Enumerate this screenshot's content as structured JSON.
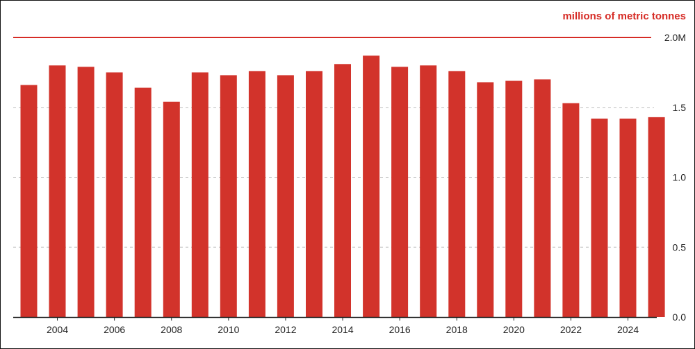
{
  "chart_data": {
    "type": "bar",
    "unit_label": "millions of metric tonnes",
    "categories": [
      "2003",
      "2004",
      "2005",
      "2006",
      "2007",
      "2008",
      "2009",
      "2010",
      "2011",
      "2012",
      "2013",
      "2014",
      "2015",
      "2016",
      "2017",
      "2018",
      "2019",
      "2020",
      "2021",
      "2022",
      "2023",
      "2024",
      "2025"
    ],
    "values": [
      1.66,
      1.8,
      1.79,
      1.75,
      1.64,
      1.54,
      1.75,
      1.73,
      1.76,
      1.73,
      1.76,
      1.81,
      1.87,
      1.79,
      1.8,
      1.76,
      1.68,
      1.69,
      1.7,
      1.53,
      1.42,
      1.42,
      1.43
    ],
    "x_tick_labels": [
      "2004",
      "2006",
      "2008",
      "2010",
      "2012",
      "2014",
      "2016",
      "2018",
      "2020",
      "2022",
      "2024"
    ],
    "y_ticks": [
      {
        "value": 0.0,
        "label": "0.0"
      },
      {
        "value": 0.5,
        "label": "0.5"
      },
      {
        "value": 1.0,
        "label": "1.0"
      },
      {
        "value": 1.5,
        "label": "1.5"
      },
      {
        "value": 2.0,
        "label": "2.0M"
      }
    ],
    "ylim": [
      0,
      2.0
    ],
    "grid": true,
    "colors": {
      "bar": "#d2332b",
      "accent": "#d62c26",
      "grid": "#bdbdbd",
      "axis": "#222222"
    }
  }
}
